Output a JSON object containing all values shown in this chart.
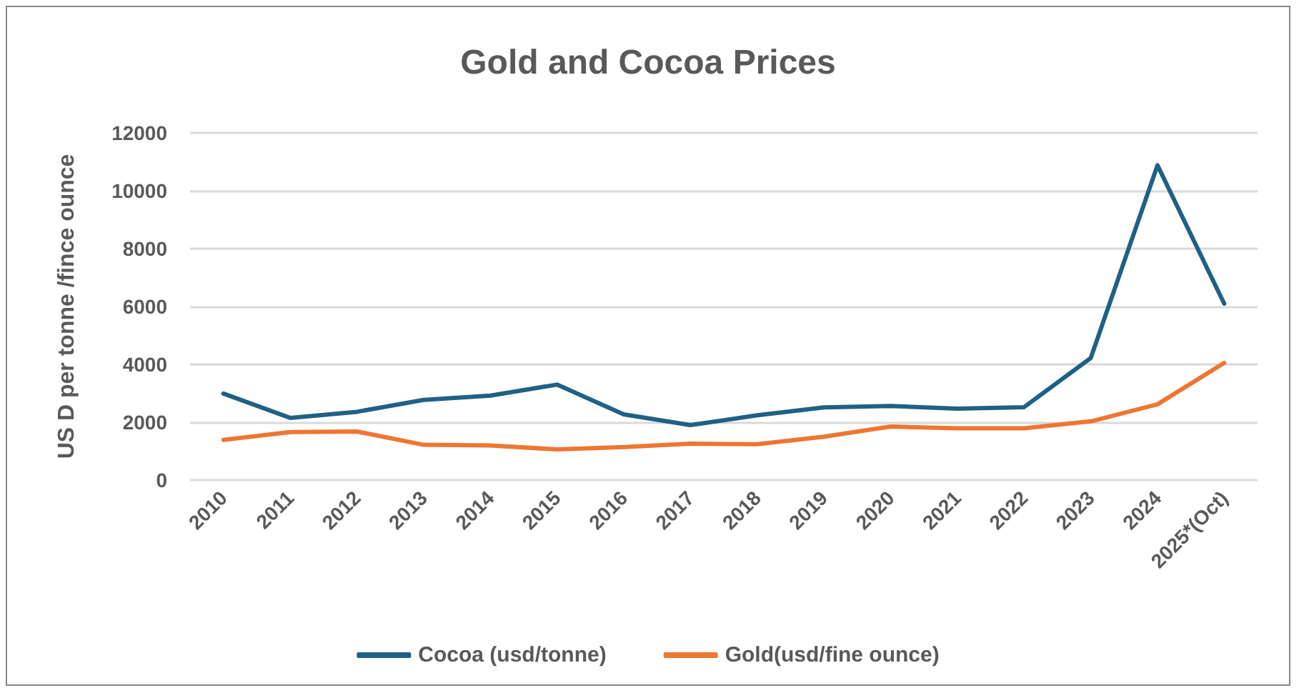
{
  "chart_data": {
    "type": "line",
    "title": "Gold and Cocoa Prices",
    "ylabel": "US D per tonne /fince ounce",
    "categories": [
      "2010",
      "2011",
      "2012",
      "2013",
      "2014",
      "2015",
      "2016",
      "2017",
      "2018",
      "2019",
      "2020",
      "2021",
      "2022",
      "2023",
      "2024",
      "2025*(Oct)"
    ],
    "series": [
      {
        "name": "Cocoa (usd/tonne)",
        "color": "#1f6184",
        "values": [
          2990,
          2150,
          2360,
          2770,
          2920,
          3300,
          2270,
          1900,
          2240,
          2510,
          2560,
          2470,
          2520,
          4220,
          10880,
          6100
        ]
      },
      {
        "name": "Gold(usd/fine ounce)",
        "color": "#ed7633",
        "values": [
          1390,
          1660,
          1680,
          1220,
          1200,
          1060,
          1140,
          1260,
          1240,
          1500,
          1850,
          1790,
          1790,
          2030,
          2620,
          4050
        ]
      }
    ],
    "ylim": [
      0,
      12000
    ],
    "yticks": [
      0,
      2000,
      4000,
      6000,
      8000,
      10000,
      12000
    ],
    "grid": "y",
    "legend": "bottom",
    "marker": "none",
    "line_style": "solid"
  }
}
